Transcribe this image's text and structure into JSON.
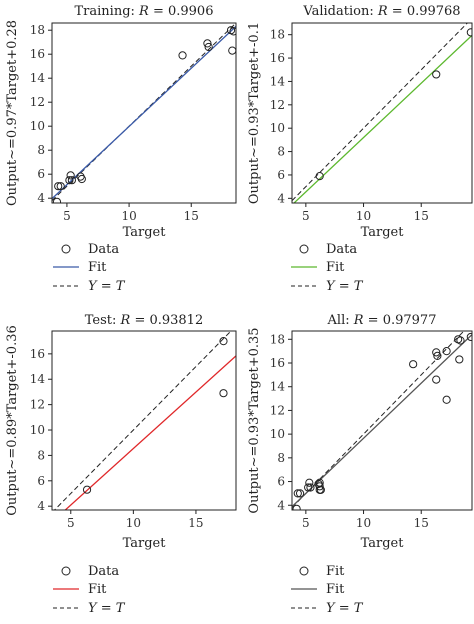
{
  "chart_data": [
    {
      "type": "scatter",
      "title": "Training: R = 0.9906",
      "title_prefix": "Training: ",
      "title_var": "R",
      "title_value": " = 0.9906",
      "xlabel": "Target",
      "ylabel": "Output~=0.97*Target+0.28",
      "xlim": [
        3.8,
        18.6
      ],
      "ylim": [
        3.6,
        18.6
      ],
      "xticks": [
        5,
        10,
        15
      ],
      "yticks": [
        4,
        6,
        8,
        10,
        12,
        14,
        16,
        18
      ],
      "grid": false,
      "fit_color": "#3a5aa8",
      "fit": {
        "slope": 0.97,
        "intercept": 0.28
      },
      "points": [
        [
          4.2,
          3.7
        ],
        [
          4.3,
          5.0
        ],
        [
          4.5,
          5.0
        ],
        [
          5.2,
          5.5
        ],
        [
          5.3,
          5.9
        ],
        [
          5.4,
          5.5
        ],
        [
          6.1,
          5.8
        ],
        [
          6.2,
          5.6
        ],
        [
          14.3,
          15.9
        ],
        [
          16.3,
          16.9
        ],
        [
          16.4,
          16.6
        ],
        [
          18.2,
          18.0
        ],
        [
          18.3,
          16.3
        ],
        [
          18.4,
          17.9
        ]
      ],
      "legend": {
        "items": [
          "Data",
          "Fit",
          "Y = T"
        ],
        "placement": "below"
      }
    },
    {
      "type": "scatter",
      "title": "Validation: R = 0.99768",
      "title_prefix": "Validation: ",
      "title_var": "R",
      "title_value": " = 0.99768",
      "xlabel": "Target",
      "ylabel": "Output~=0.93*Target+-0.1",
      "xlim": [
        3.8,
        19.4
      ],
      "ylim": [
        3.6,
        19.0
      ],
      "xticks": [
        5,
        10,
        15
      ],
      "yticks": [
        4,
        6,
        8,
        10,
        12,
        14,
        16,
        18
      ],
      "grid": false,
      "fit_color": "#5cb82e",
      "fit": {
        "slope": 0.93,
        "intercept": -0.1
      },
      "points": [
        [
          6.2,
          5.9
        ],
        [
          16.3,
          14.6
        ],
        [
          19.3,
          18.2
        ]
      ],
      "legend": {
        "items": [
          "Data",
          "Fit",
          "Y = T"
        ],
        "placement": "below"
      }
    },
    {
      "type": "scatter",
      "title": "Test: R = 0.93812",
      "title_prefix": "Test: ",
      "title_var": "R",
      "title_value": " = 0.93812",
      "xlabel": "Target",
      "ylabel": "Output~=0.89*Target+-0.36",
      "xlim": [
        3.5,
        18.2
      ],
      "ylim": [
        3.7,
        17.8
      ],
      "xticks": [
        5,
        10,
        15
      ],
      "yticks": [
        4,
        6,
        8,
        10,
        12,
        14,
        16
      ],
      "grid": false,
      "fit_color": "#e0282a",
      "fit": {
        "slope": 0.89,
        "intercept": -0.36
      },
      "points": [
        [
          6.3,
          5.3
        ],
        [
          17.2,
          17.0
        ],
        [
          17.2,
          12.9
        ]
      ],
      "legend": {
        "items": [
          "Data",
          "Fit",
          "Y = T"
        ],
        "placement": "below"
      }
    },
    {
      "type": "scatter",
      "title": "All: R = 0.97977",
      "title_prefix": "All: ",
      "title_var": "R",
      "title_value": " = 0.97977",
      "xlabel": "Target",
      "ylabel": "Output~=0.93*Target+0.35",
      "xlim": [
        3.8,
        19.4
      ],
      "ylim": [
        3.6,
        18.7
      ],
      "xticks": [
        5,
        10,
        15
      ],
      "yticks": [
        4,
        6,
        8,
        10,
        12,
        14,
        16,
        18
      ],
      "grid": false,
      "fit_color": "#555555",
      "fit": {
        "slope": 0.93,
        "intercept": 0.35
      },
      "points": [
        [
          4.2,
          3.7
        ],
        [
          4.3,
          5.0
        ],
        [
          4.5,
          5.0
        ],
        [
          5.2,
          5.5
        ],
        [
          5.3,
          5.9
        ],
        [
          5.4,
          5.5
        ],
        [
          6.1,
          5.8
        ],
        [
          6.2,
          5.6
        ],
        [
          6.2,
          5.3
        ],
        [
          6.3,
          5.3
        ],
        [
          6.2,
          5.9
        ],
        [
          14.3,
          15.9
        ],
        [
          16.3,
          16.9
        ],
        [
          16.4,
          16.6
        ],
        [
          16.3,
          14.6
        ],
        [
          17.2,
          17.0
        ],
        [
          17.2,
          12.9
        ],
        [
          18.2,
          18.0
        ],
        [
          18.3,
          16.3
        ],
        [
          18.4,
          17.9
        ],
        [
          19.3,
          18.2
        ]
      ],
      "legend": {
        "items": [
          "Fit",
          "Fit",
          "Y = T"
        ],
        "placement": "below"
      }
    }
  ]
}
